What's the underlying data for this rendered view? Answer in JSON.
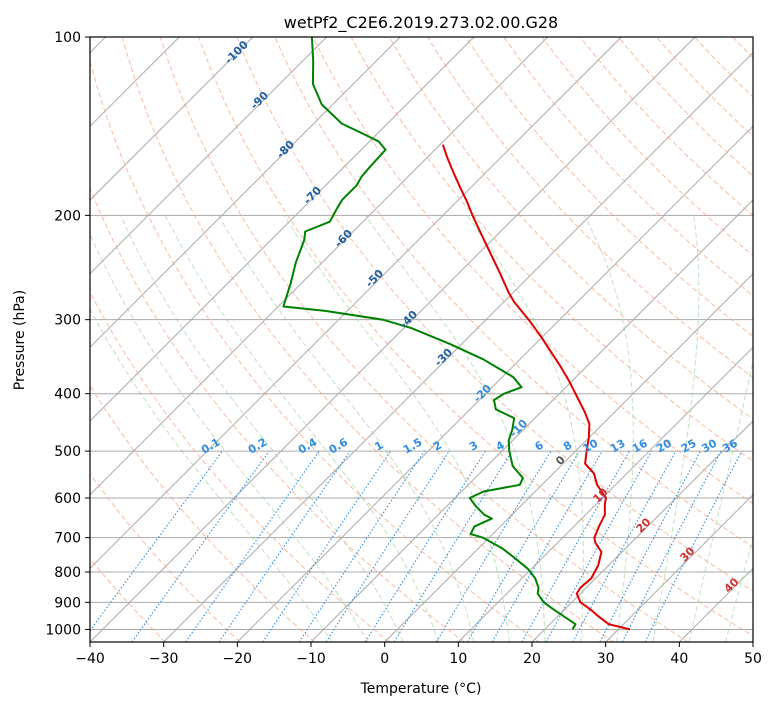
{
  "chart_data": {
    "type": "skew-t",
    "title": "wetPf2_C2E6.2019.273.02.00.G28",
    "xlabel": "Temperature (°C)",
    "ylabel": "Pressure (hPa)",
    "xlim": [
      -40,
      50
    ],
    "ylim": [
      1050,
      100
    ],
    "x_ticks": [
      "−40",
      "−30",
      "−20",
      "−10",
      "0",
      "10",
      "20",
      "30",
      "40",
      "50"
    ],
    "y_ticks": [
      "100",
      "200",
      "300",
      "400",
      "500",
      "600",
      "700",
      "800",
      "900",
      "1000"
    ],
    "grid": true,
    "dry_adiabat_labels": [
      "-100",
      "-90",
      "-80",
      "-70",
      "-60",
      "-50",
      "-40",
      "-30",
      "-20",
      "-10",
      "0",
      "10",
      "20",
      "30",
      "40"
    ],
    "mixing_ratio_labels": [
      "0.1",
      "0.2",
      "0.4",
      "0.6",
      "1",
      "1.5",
      "2",
      "3",
      "4",
      "6",
      "8",
      "10",
      "13",
      "16",
      "20",
      "25",
      "30",
      "36"
    ],
    "series": [
      {
        "name": "",
        "role": "temperature",
        "color": "#e00000",
        "points": [
          [
            1000,
            31.6
          ],
          [
            980,
            28.0
          ],
          [
            950,
            25.5
          ],
          [
            925,
            23.5
          ],
          [
            900,
            21.2
          ],
          [
            870,
            19.5
          ],
          [
            850,
            19.2
          ],
          [
            820,
            19.4
          ],
          [
            780,
            18.6
          ],
          [
            740,
            17.2
          ],
          [
            715,
            15.2
          ],
          [
            700,
            14.3
          ],
          [
            670,
            13.4
          ],
          [
            640,
            12.6
          ],
          [
            615,
            11.2
          ],
          [
            600,
            10.5
          ],
          [
            570,
            7.5
          ],
          [
            545,
            5.5
          ],
          [
            525,
            3.0
          ],
          [
            500,
            1.5
          ],
          [
            475,
            0.0
          ],
          [
            450,
            -1.8
          ],
          [
            430,
            -4.0
          ],
          [
            410,
            -6.5
          ],
          [
            400,
            -7.8
          ],
          [
            380,
            -10.5
          ],
          [
            360,
            -13.5
          ],
          [
            340,
            -16.8
          ],
          [
            320,
            -20.3
          ],
          [
            300,
            -24.2
          ],
          [
            280,
            -28.6
          ],
          [
            270,
            -30.6
          ],
          [
            250,
            -34.5
          ],
          [
            230,
            -38.8
          ],
          [
            210,
            -43.5
          ],
          [
            200,
            -46.0
          ],
          [
            190,
            -48.5
          ],
          [
            180,
            -51.3
          ],
          [
            170,
            -54.2
          ],
          [
            160,
            -57.2
          ],
          [
            152,
            -59.6
          ]
        ]
      },
      {
        "name": "",
        "role": "dewpoint",
        "color": "#008000",
        "points": [
          [
            1000,
            23.8
          ],
          [
            980,
            23.5
          ],
          [
            950,
            20.8
          ],
          [
            925,
            18.5
          ],
          [
            900,
            16.2
          ],
          [
            870,
            14.2
          ],
          [
            850,
            13.5
          ],
          [
            820,
            11.8
          ],
          [
            790,
            9.5
          ],
          [
            760,
            6.5
          ],
          [
            730,
            3.3
          ],
          [
            700,
            -0.8
          ],
          [
            690,
            -3.0
          ],
          [
            670,
            -3.5
          ],
          [
            650,
            -2.2
          ],
          [
            640,
            -3.8
          ],
          [
            620,
            -6.0
          ],
          [
            600,
            -8.0
          ],
          [
            585,
            -7.0
          ],
          [
            570,
            -3.0
          ],
          [
            555,
            -3.5
          ],
          [
            530,
            -6.5
          ],
          [
            500,
            -9.0
          ],
          [
            480,
            -10.5
          ],
          [
            460,
            -11.5
          ],
          [
            440,
            -12.8
          ],
          [
            425,
            -16.5
          ],
          [
            410,
            -18.0
          ],
          [
            400,
            -17.5
          ],
          [
            390,
            -16.0
          ],
          [
            375,
            -18.5
          ],
          [
            350,
            -25.0
          ],
          [
            330,
            -31.5
          ],
          [
            310,
            -39.0
          ],
          [
            300,
            -44.0
          ],
          [
            290,
            -53.0
          ],
          [
            285,
            -59.3
          ],
          [
            260,
            -61.5
          ],
          [
            240,
            -63.6
          ],
          [
            220,
            -65.5
          ],
          [
            213,
            -66.5
          ],
          [
            205,
            -64.5
          ],
          [
            195,
            -65.3
          ],
          [
            188,
            -65.8
          ],
          [
            178,
            -65.8
          ],
          [
            172,
            -66.3
          ],
          [
            165,
            -66.5
          ],
          [
            155,
            -66.7
          ],
          [
            150,
            -68.8
          ],
          [
            145,
            -72.4
          ],
          [
            140,
            -76.2
          ],
          [
            130,
            -81.5
          ],
          [
            120,
            -85.5
          ],
          [
            110,
            -88.5
          ],
          [
            100,
            -92.0
          ]
        ]
      }
    ]
  }
}
